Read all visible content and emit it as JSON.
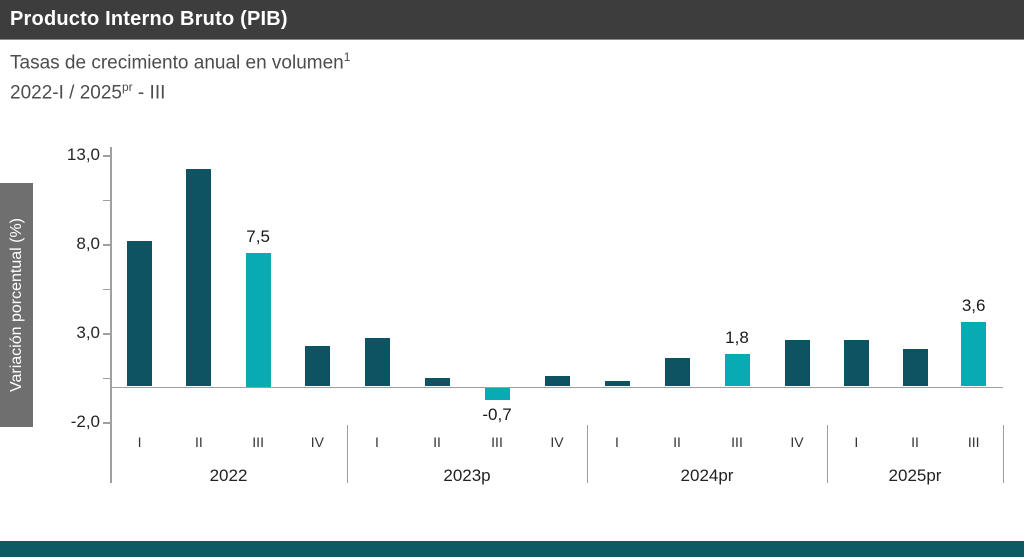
{
  "header": {
    "title": "Producto Interno Bruto (PIB)"
  },
  "subtitle": {
    "line1": "Tasas de crecimiento anual en volumen",
    "line1_sup": "1",
    "line2_pre": "2022-I / 2025",
    "line2_sup": "pr",
    "line2_post": " - III"
  },
  "y_axis": {
    "label": "Variación porcentual (%)",
    "tick_labels": [
      "13,0",
      "8,0",
      "3,0",
      "-2,0"
    ],
    "tick_values": [
      13,
      8,
      3,
      -2
    ],
    "minor_tick_step": 2.5,
    "range": [
      -2,
      13
    ]
  },
  "chart_data": {
    "type": "bar",
    "title": "Producto Interno Bruto (PIB)",
    "ylabel": "Variación porcentual (%)",
    "ylim": [
      -2,
      13
    ],
    "grid": false,
    "legend": false,
    "colors": {
      "bar": "#0d5361",
      "highlight": "#07abb1"
    },
    "groups": [
      {
        "year": "2022",
        "quarters": [
          "I",
          "II",
          "III",
          "IV"
        ],
        "values": [
          8.2,
          12.2,
          7.5,
          2.3
        ],
        "highlight_index": 2,
        "highlight_label": "7,5"
      },
      {
        "year": "2023p",
        "quarters": [
          "I",
          "II",
          "III",
          "IV"
        ],
        "values": [
          2.7,
          0.5,
          -0.7,
          0.6
        ],
        "highlight_index": 2,
        "highlight_label": "-0,7"
      },
      {
        "year": "2024pr",
        "quarters": [
          "I",
          "II",
          "III",
          "IV"
        ],
        "values": [
          0.3,
          1.6,
          1.8,
          2.6
        ],
        "highlight_index": 2,
        "highlight_label": "1,8"
      },
      {
        "year": "2025pr",
        "quarters": [
          "I",
          "II",
          "III"
        ],
        "values": [
          2.6,
          2.1,
          3.6
        ],
        "highlight_index": 2,
        "highlight_label": "3,6"
      }
    ]
  },
  "footer": {
    "accent_color": "#0e5a63"
  }
}
